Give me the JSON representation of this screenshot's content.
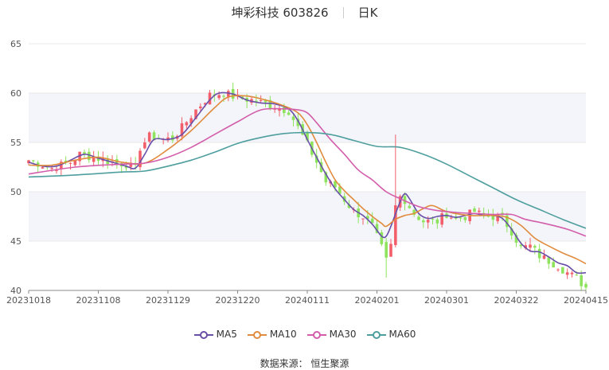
{
  "header": {
    "stock": "坤彩科技 603826",
    "period": "日K"
  },
  "source": "数据来源： 恒生聚源",
  "colors": {
    "up": "#f25f6a",
    "down": "#8ee35c",
    "band": "#f3f5fa",
    "grid": "#e8e8e8",
    "axis": "#555555"
  },
  "chart_data": {
    "type": "line",
    "ylim": [
      40,
      65
    ],
    "yticks": [
      40,
      45,
      50,
      55,
      60,
      65
    ],
    "xticks": [
      "20231018",
      "20231108",
      "20231129",
      "20231220",
      "20240111",
      "20240201",
      "20240301",
      "20240322",
      "20240415"
    ],
    "n_bars": 121,
    "xtick_index": [
      0,
      15,
      30,
      45,
      60,
      75,
      90,
      105,
      120
    ],
    "candles": {
      "anchors": [
        [
          0,
          53.2
        ],
        [
          5,
          52.4
        ],
        [
          9,
          53.0
        ],
        [
          11,
          53.8
        ],
        [
          14,
          53.5
        ],
        [
          18,
          53.0
        ],
        [
          21,
          52.8
        ],
        [
          23,
          52.3
        ],
        [
          24,
          54.5
        ],
        [
          26,
          55.6
        ],
        [
          29,
          55.3
        ],
        [
          31,
          55.4
        ],
        [
          33,
          56.5
        ],
        [
          36,
          58.3
        ],
        [
          39,
          59.8
        ],
        [
          42,
          60.0
        ],
        [
          45,
          59.5
        ],
        [
          48,
          59.3
        ],
        [
          52,
          58.8
        ],
        [
          56,
          58.2
        ],
        [
          58,
          56.5
        ],
        [
          60,
          54.8
        ],
        [
          62,
          53.0
        ],
        [
          64,
          51.0
        ],
        [
          66,
          50.5
        ],
        [
          68,
          49.2
        ],
        [
          70,
          48.0
        ],
        [
          72,
          47.5
        ],
        [
          74,
          46.5
        ],
        [
          76,
          44.3
        ],
        [
          77,
          43.0
        ],
        [
          78,
          44.5
        ],
        [
          79,
          48.5
        ],
        [
          80,
          49.5
        ],
        [
          81,
          49.2
        ],
        [
          83,
          47.8
        ],
        [
          85,
          47.0
        ],
        [
          88,
          47.0
        ],
        [
          90,
          47.8
        ],
        [
          92,
          47.2
        ],
        [
          94,
          47.5
        ],
        [
          96,
          48.0
        ],
        [
          98,
          47.5
        ],
        [
          100,
          47.5
        ],
        [
          102,
          47.3
        ],
        [
          104,
          46.0
        ],
        [
          106,
          44.3
        ],
        [
          108,
          44.5
        ],
        [
          110,
          43.5
        ],
        [
          112,
          43.0
        ],
        [
          114,
          42.5
        ],
        [
          116,
          41.8
        ],
        [
          118,
          41.2
        ],
        [
          120,
          40.3
        ]
      ]
    },
    "series": [
      {
        "name": "MA5",
        "color": "#6a4fa8",
        "points": [
          [
            0,
            53.0
          ],
          [
            3,
            52.6
          ],
          [
            6,
            52.6
          ],
          [
            9,
            53.2
          ],
          [
            12,
            53.8
          ],
          [
            15,
            53.4
          ],
          [
            18,
            53.0
          ],
          [
            21,
            52.6
          ],
          [
            23,
            52.4
          ],
          [
            25,
            53.8
          ],
          [
            27,
            55.3
          ],
          [
            30,
            55.3
          ],
          [
            33,
            55.8
          ],
          [
            36,
            57.5
          ],
          [
            39,
            59.3
          ],
          [
            41,
            60.0
          ],
          [
            44,
            59.9
          ],
          [
            47,
            59.3
          ],
          [
            50,
            59.0
          ],
          [
            53,
            58.9
          ],
          [
            56,
            58.4
          ],
          [
            58,
            57.2
          ],
          [
            60,
            55.3
          ],
          [
            62,
            53.5
          ],
          [
            64,
            51.8
          ],
          [
            66,
            50.3
          ],
          [
            68,
            49.2
          ],
          [
            70,
            48.2
          ],
          [
            72,
            47.6
          ],
          [
            74,
            46.7
          ],
          [
            76,
            45.5
          ],
          [
            77,
            45.5
          ],
          [
            78,
            46.5
          ],
          [
            80,
            49.0
          ],
          [
            81,
            49.8
          ],
          [
            82,
            49.3
          ],
          [
            84,
            47.8
          ],
          [
            86,
            47.3
          ],
          [
            88,
            47.5
          ],
          [
            90,
            47.6
          ],
          [
            92,
            47.4
          ],
          [
            94,
            47.6
          ],
          [
            96,
            47.8
          ],
          [
            98,
            47.6
          ],
          [
            100,
            47.6
          ],
          [
            102,
            47.3
          ],
          [
            104,
            46.2
          ],
          [
            106,
            44.8
          ],
          [
            108,
            44.0
          ],
          [
            110,
            43.9
          ],
          [
            112,
            43.4
          ],
          [
            114,
            42.8
          ],
          [
            116,
            42.5
          ],
          [
            118,
            41.8
          ],
          [
            120,
            41.8
          ]
        ]
      },
      {
        "name": "MA10",
        "color": "#e08b3d",
        "points": [
          [
            0,
            52.7
          ],
          [
            5,
            52.7
          ],
          [
            10,
            53.2
          ],
          [
            15,
            53.5
          ],
          [
            20,
            53.0
          ],
          [
            25,
            52.9
          ],
          [
            30,
            54.3
          ],
          [
            35,
            56.2
          ],
          [
            40,
            58.5
          ],
          [
            43,
            59.6
          ],
          [
            47,
            59.7
          ],
          [
            51,
            59.3
          ],
          [
            55,
            58.7
          ],
          [
            58,
            58.0
          ],
          [
            60,
            56.8
          ],
          [
            62,
            55.0
          ],
          [
            64,
            53.0
          ],
          [
            66,
            51.2
          ],
          [
            68,
            50.1
          ],
          [
            70,
            49.2
          ],
          [
            72,
            48.3
          ],
          [
            74,
            47.5
          ],
          [
            76,
            46.8
          ],
          [
            77,
            46.5
          ],
          [
            79,
            47.2
          ],
          [
            81,
            47.6
          ],
          [
            83,
            47.8
          ],
          [
            85,
            48.3
          ],
          [
            87,
            48.6
          ],
          [
            90,
            48.0
          ],
          [
            95,
            47.6
          ],
          [
            100,
            47.6
          ],
          [
            103,
            47.4
          ],
          [
            106,
            46.6
          ],
          [
            109,
            45.3
          ],
          [
            112,
            44.5
          ],
          [
            115,
            43.8
          ],
          [
            118,
            43.2
          ],
          [
            120,
            42.7
          ]
        ]
      },
      {
        "name": "MA30",
        "color": "#d35daa",
        "points": [
          [
            0,
            51.8
          ],
          [
            10,
            52.5
          ],
          [
            20,
            52.8
          ],
          [
            25,
            52.9
          ],
          [
            30,
            53.5
          ],
          [
            35,
            54.5
          ],
          [
            40,
            55.8
          ],
          [
            45,
            57.1
          ],
          [
            50,
            58.3
          ],
          [
            55,
            58.4
          ],
          [
            58,
            58.3
          ],
          [
            60,
            58.0
          ],
          [
            62,
            57.0
          ],
          [
            65,
            55.3
          ],
          [
            68,
            53.8
          ],
          [
            71,
            52.2
          ],
          [
            74,
            51.2
          ],
          [
            77,
            50.0
          ],
          [
            80,
            49.3
          ],
          [
            84,
            48.5
          ],
          [
            88,
            48.1
          ],
          [
            92,
            47.9
          ],
          [
            96,
            47.8
          ],
          [
            100,
            47.7
          ],
          [
            104,
            47.7
          ],
          [
            107,
            47.2
          ],
          [
            111,
            46.8
          ],
          [
            116,
            46.2
          ],
          [
            120,
            45.5
          ]
        ]
      },
      {
        "name": "MA60",
        "color": "#4e9e9e",
        "points": [
          [
            0,
            51.5
          ],
          [
            10,
            51.7
          ],
          [
            20,
            52.0
          ],
          [
            25,
            52.1
          ],
          [
            30,
            52.6
          ],
          [
            35,
            53.2
          ],
          [
            40,
            54.0
          ],
          [
            45,
            54.9
          ],
          [
            50,
            55.5
          ],
          [
            55,
            55.9
          ],
          [
            60,
            56.0
          ],
          [
            65,
            55.8
          ],
          [
            70,
            55.2
          ],
          [
            75,
            54.6
          ],
          [
            80,
            54.5
          ],
          [
            85,
            53.8
          ],
          [
            90,
            52.8
          ],
          [
            95,
            51.6
          ],
          [
            100,
            50.4
          ],
          [
            105,
            49.2
          ],
          [
            110,
            48.2
          ],
          [
            115,
            47.2
          ],
          [
            120,
            46.3
          ]
        ]
      }
    ]
  }
}
